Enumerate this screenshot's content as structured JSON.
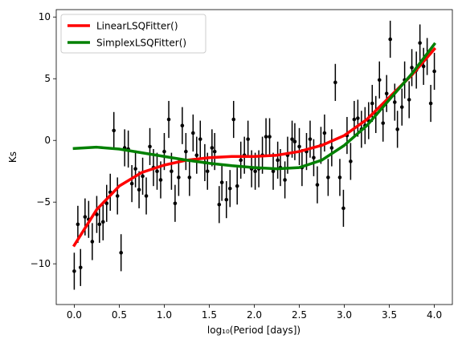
{
  "chart_data": {
    "type": "errorbar",
    "xlabel": "log₁₀(Period [days])",
    "ylabel": "Ks",
    "xlim": [
      -0.2,
      4.2
    ],
    "ylim": [
      -13.3,
      10.6
    ],
    "xticks": [
      {
        "value": 0,
        "label": "0.0"
      },
      0.5,
      {
        "value": 1,
        "label": "1.0"
      },
      1.5,
      {
        "value": 2,
        "label": "2.0"
      },
      2.5,
      {
        "value": 3,
        "label": "3.0"
      },
      3.5,
      {
        "value": 4,
        "label": "4.0"
      }
    ],
    "yticks": [
      {
        "value": -10,
        "label": "−10"
      },
      {
        "value": -5,
        "label": "−5"
      },
      0,
      5,
      10
    ],
    "legend": "upper left",
    "points": {
      "color": "#000000",
      "x": [
        0.0,
        0.04,
        0.07,
        0.12,
        0.16,
        0.2,
        0.25,
        0.28,
        0.32,
        0.36,
        0.4,
        0.44,
        0.48,
        0.52,
        0.56,
        0.6,
        0.64,
        0.68,
        0.72,
        0.76,
        0.8,
        0.84,
        0.88,
        0.92,
        0.96,
        1.0,
        1.05,
        1.08,
        1.12,
        1.16,
        1.2,
        1.24,
        1.28,
        1.32,
        1.36,
        1.4,
        1.45,
        1.48,
        1.53,
        1.56,
        1.61,
        1.64,
        1.69,
        1.73,
        1.77,
        1.81,
        1.85,
        1.89,
        1.93,
        1.97,
        2.01,
        2.05,
        2.09,
        2.13,
        2.17,
        2.21,
        2.26,
        2.29,
        2.34,
        2.37,
        2.42,
        2.45,
        2.5,
        2.53,
        2.58,
        2.62,
        2.66,
        2.7,
        2.74,
        2.78,
        2.82,
        2.86,
        2.9,
        2.95,
        2.99,
        3.03,
        3.07,
        3.11,
        3.15,
        3.19,
        3.23,
        3.27,
        3.31,
        3.35,
        3.39,
        3.43,
        3.47,
        3.51,
        3.56,
        3.59,
        3.64,
        3.67,
        3.72,
        3.75,
        3.8,
        3.84,
        3.88,
        3.92,
        3.96,
        4.0
      ],
      "values": [
        -10.6,
        -6.8,
        -10.3,
        -6.2,
        -6.4,
        -8.2,
        -6.0,
        -6.8,
        -6.6,
        -5.1,
        -4.2,
        0.8,
        -4.5,
        -9.1,
        -0.6,
        -0.7,
        -3.5,
        -2.3,
        -4.0,
        -2.9,
        -4.5,
        -0.5,
        -2.2,
        -2.5,
        -3.2,
        -0.9,
        1.7,
        -2.5,
        -5.1,
        -3.0,
        1.2,
        -0.9,
        -3.0,
        0.6,
        -1.2,
        0.1,
        -1.8,
        -2.5,
        -0.6,
        -0.9,
        -5.2,
        -3.4,
        -4.8,
        -3.9,
        1.7,
        -3.7,
        -1.6,
        -1.2,
        0.1,
        -2.3,
        -2.5,
        -2.3,
        -1.2,
        0.3,
        0.3,
        -2.5,
        -1.6,
        -2.2,
        -3.2,
        -1.2,
        0.1,
        -0.1,
        -0.5,
        -2.2,
        -0.9,
        0.1,
        -1.4,
        -3.6,
        -0.4,
        0.6,
        -3.0,
        -0.6,
        4.7,
        -3.0,
        -5.5,
        0.4,
        -1.7,
        1.7,
        1.8,
        0.9,
        1.2,
        1.6,
        3.0,
        2.1,
        4.9,
        1.4,
        3.8,
        8.2,
        3.1,
        0.9,
        2.7,
        4.9,
        3.3,
        5.9,
        5.7,
        7.9,
        6.0,
        6.8,
        3.0,
        5.6
      ],
      "errors": [
        1.5,
        1.5,
        1.5,
        1.5,
        1.5,
        1.5,
        1.5,
        1.5,
        1.5,
        1.5,
        1.5,
        1.5,
        1.5,
        1.5,
        1.5,
        1.5,
        1.5,
        1.5,
        1.5,
        1.5,
        1.5,
        1.5,
        1.5,
        1.5,
        1.5,
        1.5,
        1.5,
        1.5,
        1.5,
        1.5,
        1.5,
        1.5,
        1.5,
        1.5,
        1.5,
        1.5,
        1.5,
        1.5,
        1.5,
        1.5,
        1.5,
        1.5,
        1.5,
        1.5,
        1.5,
        1.5,
        1.5,
        1.5,
        1.5,
        1.5,
        1.5,
        1.5,
        1.5,
        1.5,
        1.5,
        1.5,
        1.5,
        1.5,
        1.5,
        1.5,
        1.5,
        1.5,
        1.5,
        1.5,
        1.5,
        1.5,
        1.5,
        1.5,
        1.5,
        1.5,
        1.5,
        1.5,
        1.5,
        1.5,
        1.5,
        1.5,
        1.5,
        1.5,
        1.5,
        1.5,
        1.5,
        1.5,
        1.5,
        1.5,
        1.5,
        1.5,
        1.5,
        1.5,
        1.5,
        1.5,
        1.5,
        1.5,
        1.5,
        1.5,
        1.5,
        1.5,
        1.5,
        1.5,
        1.5,
        1.5
      ]
    },
    "series": [
      {
        "name": "LinearLSQFitter()",
        "color": "#ff0000",
        "x": [
          0,
          0.25,
          0.5,
          0.75,
          1,
          1.25,
          1.5,
          1.75,
          2,
          2.25,
          2.5,
          2.75,
          3,
          3.25,
          3.5,
          3.75,
          4
        ],
        "values": [
          -8.5,
          -5.6,
          -3.7,
          -2.6,
          -2.0,
          -1.6,
          -1.4,
          -1.3,
          -1.3,
          -1.2,
          -0.9,
          -0.4,
          0.4,
          1.7,
          3.5,
          5.3,
          7.4
        ]
      },
      {
        "name": "SimplexLSQFitter()",
        "color": "#008000",
        "x": [
          0,
          0.25,
          0.5,
          0.75,
          1,
          1.25,
          1.5,
          1.75,
          2,
          2.25,
          2.5,
          2.75,
          3,
          3.25,
          3.5,
          3.75,
          4
        ],
        "values": [
          -0.65,
          -0.55,
          -0.7,
          -1.0,
          -1.3,
          -1.6,
          -1.85,
          -2.05,
          -2.2,
          -2.3,
          -2.2,
          -1.6,
          -0.4,
          1.2,
          3.3,
          5.4,
          7.8
        ]
      }
    ]
  }
}
